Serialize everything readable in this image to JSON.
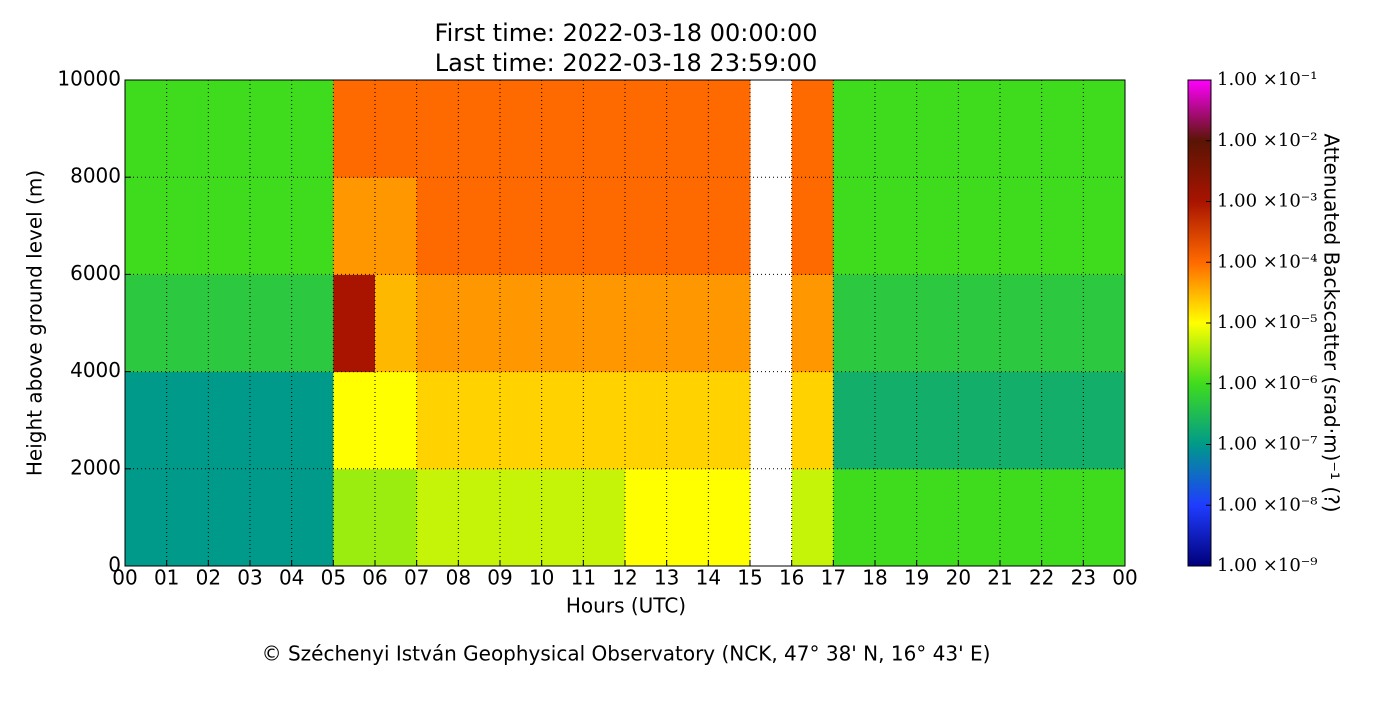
{
  "chart_data": {
    "type": "heatmap",
    "title": "First time: 2022-03-18 00:00:00",
    "subtitle": "Last time: 2022-03-18 23:59:00",
    "x_label": "Hours (UTC)",
    "y_label": "Height above ground level (m)",
    "colorbar_label": "Attenuated Backscatter (srad·m)⁻¹ (?)",
    "footer": "© Széchenyi István Geophysical Observatory (NCK, 47° 38' N, 16° 43' E)",
    "xlim": [
      0,
      24
    ],
    "xticks": [
      {
        "value": 0,
        "label": "00"
      },
      {
        "value": 1,
        "label": "01"
      },
      {
        "value": 2,
        "label": "02"
      },
      {
        "value": 3,
        "label": "03"
      },
      {
        "value": 4,
        "label": "04"
      },
      {
        "value": 5,
        "label": "05"
      },
      {
        "value": 6,
        "label": "06"
      },
      {
        "value": 7,
        "label": "07"
      },
      {
        "value": 8,
        "label": "08"
      },
      {
        "value": 9,
        "label": "09"
      },
      10,
      11,
      12,
      13,
      14,
      15,
      16,
      17,
      18,
      19,
      20,
      21,
      22,
      23,
      {
        "value": 24,
        "label": "00"
      }
    ],
    "ylim": [
      0,
      10000
    ],
    "yticks": [
      0,
      2000,
      4000,
      6000,
      8000,
      10000
    ],
    "grid": true,
    "x_bins": [
      0,
      1,
      2,
      3,
      4,
      5,
      6,
      7,
      8,
      9,
      10,
      11,
      12,
      13,
      14,
      15,
      16,
      17,
      18,
      19,
      20,
      21,
      22,
      23,
      24
    ],
    "y_bins": [
      0,
      2000,
      4000,
      6000,
      8000,
      10000
    ],
    "values": [
      [
        1e-07,
        1e-07,
        1e-07,
        1e-07,
        1e-07,
        3e-06,
        3e-06,
        5e-06,
        5e-06,
        5e-06,
        5e-06,
        5e-06,
        1e-05,
        1e-05,
        1e-05,
        null,
        5e-06,
        1e-06,
        1e-06,
        1e-06,
        1e-06,
        1e-06,
        1e-06,
        1e-06
      ],
      [
        1e-07,
        1e-07,
        1e-07,
        1e-07,
        1e-07,
        1e-05,
        1e-05,
        2e-05,
        2e-05,
        2e-05,
        2e-05,
        2e-05,
        2e-05,
        2e-05,
        2e-05,
        null,
        2e-05,
        2e-07,
        2e-07,
        2e-07,
        2e-07,
        2e-07,
        2e-07,
        2e-07
      ],
      [
        5e-07,
        5e-07,
        5e-07,
        5e-07,
        5e-07,
        0.001,
        3e-05,
        5e-05,
        5e-05,
        5e-05,
        5e-05,
        5e-05,
        5e-05,
        5e-05,
        5e-05,
        null,
        5e-05,
        5e-07,
        5e-07,
        5e-07,
        5e-07,
        5e-07,
        5e-07,
        5e-07
      ],
      [
        1e-06,
        1e-06,
        1e-06,
        1e-06,
        1e-06,
        5e-05,
        5e-05,
        0.0001,
        0.0001,
        0.0001,
        0.0001,
        0.0001,
        0.0001,
        0.0001,
        0.0001,
        null,
        0.0001,
        1e-06,
        1e-06,
        1e-06,
        1e-06,
        1e-06,
        1e-06,
        1e-06
      ],
      [
        1e-06,
        1e-06,
        1e-06,
        1e-06,
        1e-06,
        0.0001,
        0.0001,
        0.0001,
        0.0001,
        0.0001,
        0.0001,
        0.0001,
        0.0001,
        0.0001,
        0.0001,
        null,
        0.0001,
        1e-06,
        1e-06,
        1e-06,
        1e-06,
        1e-06,
        1e-06,
        1e-06
      ]
    ],
    "clim": [
      1e-09,
      0.1
    ],
    "log_color_scale": true,
    "cticks": [
      {
        "value": 1e-09,
        "label": "1.00 ×10⁻⁹"
      },
      {
        "value": 1e-08,
        "label": "1.00 ×10⁻⁸"
      },
      {
        "value": 1e-07,
        "label": "1.00 ×10⁻⁷"
      },
      {
        "value": 1e-06,
        "label": "1.00 ×10⁻⁶"
      },
      {
        "value": 1e-05,
        "label": "1.00 ×10⁻⁵"
      },
      {
        "value": 0.0001,
        "label": "1.00 ×10⁻⁴"
      },
      {
        "value": 0.001,
        "label": "1.00 ×10⁻³"
      },
      {
        "value": 0.01,
        "label": "1.00 ×10⁻²"
      },
      {
        "value": 0.1,
        "label": "1.00 ×10⁻¹"
      }
    ],
    "colormap": [
      "#00007a",
      "#1f3cff",
      "#009a8a",
      "#3fdc1e",
      "#ffff00",
      "#ff6a00",
      "#a81400",
      "#5a1404",
      "#ff00ff"
    ]
  }
}
